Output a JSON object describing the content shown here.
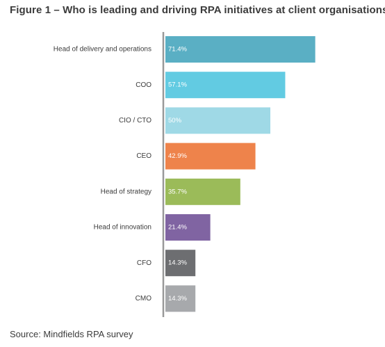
{
  "title": "Figure 1 – Who is leading and driving RPA initiatives at client organisations",
  "source": "Source: Mindfields RPA survey",
  "chart_data": {
    "type": "bar",
    "orientation": "horizontal",
    "categories": [
      "Head of delivery and operations",
      "COO",
      "CIO / CTO",
      "CEO",
      "Head of strategy",
      "Head of innovation",
      "CFO",
      "CMO"
    ],
    "values": [
      71.4,
      57.1,
      50,
      42.9,
      35.7,
      21.4,
      14.3,
      14.3
    ],
    "value_labels": [
      "71.4%",
      "57.1%",
      "50%",
      "42.9%",
      "35.7%",
      "21.4%",
      "14.3%",
      "14.3%"
    ],
    "colors": [
      "#5aafc4",
      "#62cbe2",
      "#9fd9e6",
      "#ee834b",
      "#9bbb59",
      "#8064a2",
      "#6d6e71",
      "#a7a9ac"
    ],
    "axis_color": "#999999",
    "xlim": [
      0,
      100
    ],
    "grid": false,
    "legend": "none"
  }
}
